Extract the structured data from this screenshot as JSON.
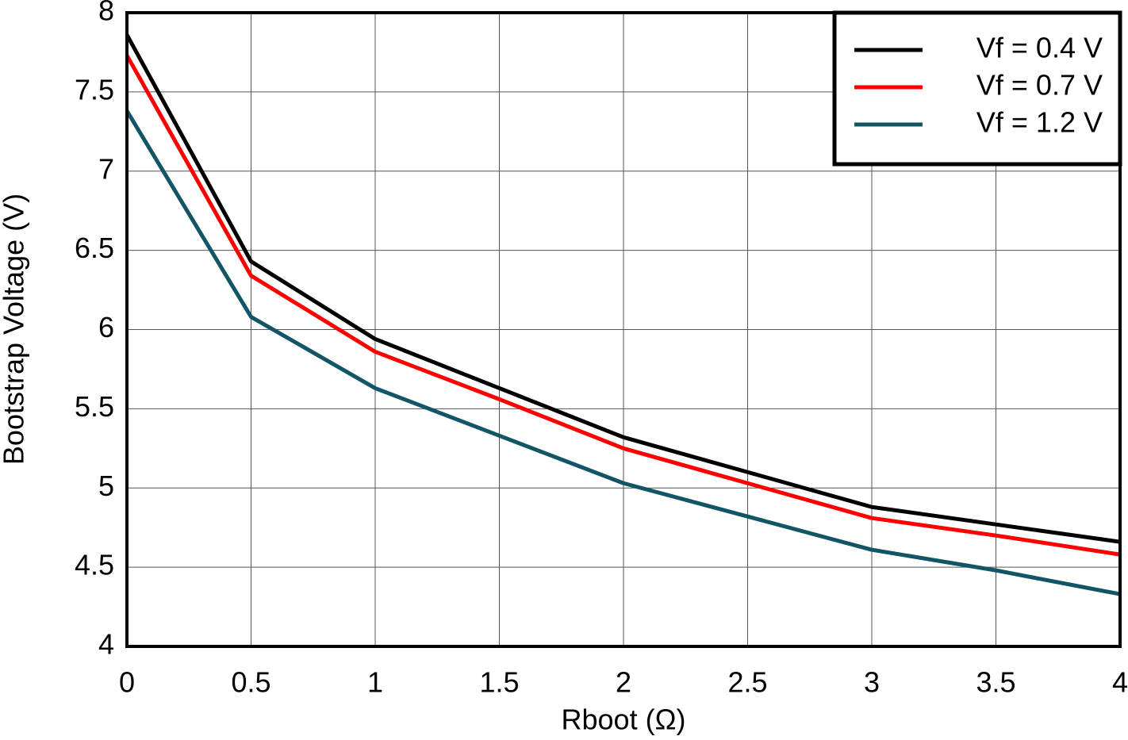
{
  "chart_data": {
    "type": "line",
    "x_label": "Rboot (Ω)",
    "y_label": "Bootstrap Voltage (V)",
    "x": [
      0,
      0.5,
      1,
      1.5,
      2,
      2.5,
      3,
      3.5,
      4
    ],
    "series": [
      {
        "name": "Vf = 0.4 V",
        "color": "#000000",
        "values": [
          7.86,
          6.43,
          5.94,
          5.63,
          5.32,
          5.1,
          4.88,
          4.77,
          4.66
        ]
      },
      {
        "name": "Vf = 0.7 V",
        "color": "#ff0000",
        "values": [
          7.73,
          6.34,
          5.86,
          5.56,
          5.25,
          5.03,
          4.81,
          4.7,
          4.58
        ]
      },
      {
        "name": "Vf = 1.2 V",
        "color": "#115566",
        "values": [
          7.38,
          6.08,
          5.63,
          5.33,
          5.03,
          4.82,
          4.61,
          4.48,
          4.33
        ]
      }
    ],
    "xlim": [
      0,
      4
    ],
    "xticks": [
      0,
      0.5,
      1,
      1.5,
      2,
      2.5,
      3,
      3.5,
      4
    ],
    "ylim": [
      4,
      8
    ],
    "yticks": [
      4,
      4.5,
      5,
      5.5,
      6,
      6.5,
      7,
      7.5,
      8
    ],
    "grid": true,
    "legend_position": "upper-right"
  }
}
